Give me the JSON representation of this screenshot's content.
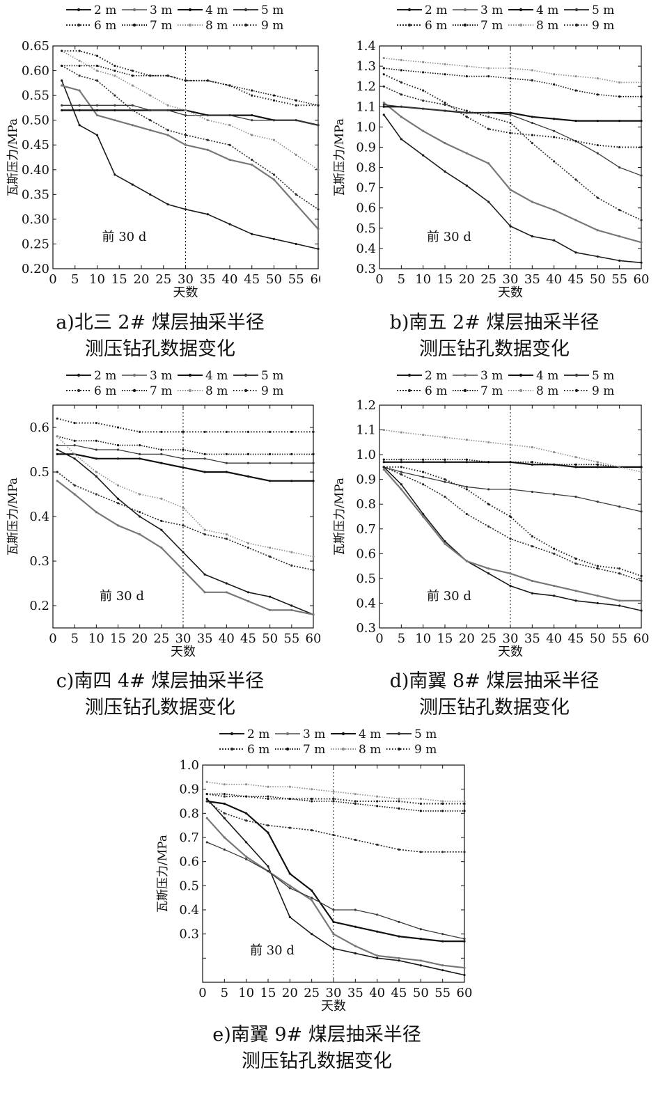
{
  "legend_labels": [
    "2 m",
    "3 m",
    "4 m",
    "5 m",
    "6 m",
    "7 m",
    "8 m",
    "9 m"
  ],
  "chart_data": [
    {
      "id": "a",
      "type": "line",
      "title": "",
      "caption_line1": "a)北三 2# 煤层抽采半径",
      "caption_line2": "测压钻孔数据变化",
      "xlabel": "天数",
      "ylabel": "瓦斯压力/MPa",
      "annotation": "前 30 d",
      "marker_x": 30,
      "xlim": [
        0,
        60
      ],
      "ylim": [
        0.2,
        0.65
      ],
      "xticks": [
        "0",
        "5",
        "10",
        "15",
        "20",
        "25",
        "30",
        "35",
        "40",
        "45",
        "50",
        "55",
        "60"
      ],
      "yticks": [
        "0.20",
        "0.25",
        "0.30",
        "0.35",
        "0.40",
        "0.45",
        "0.50",
        "0.55",
        "0.60",
        "0.65"
      ],
      "x": [
        2,
        6,
        10,
        14,
        18,
        22,
        26,
        30,
        35,
        40,
        45,
        50,
        55,
        60
      ],
      "series": [
        {
          "name": "2 m",
          "values": [
            0.58,
            0.49,
            0.47,
            0.39,
            0.37,
            0.35,
            0.33,
            0.32,
            0.31,
            0.29,
            0.27,
            0.26,
            0.25,
            0.24
          ]
        },
        {
          "name": "3 m",
          "values": [
            0.57,
            0.56,
            0.51,
            0.5,
            0.49,
            0.48,
            0.47,
            0.45,
            0.44,
            0.42,
            0.41,
            0.38,
            0.33,
            0.28
          ]
        },
        {
          "name": "4 m",
          "values": [
            0.52,
            0.52,
            0.52,
            0.52,
            0.52,
            0.52,
            0.52,
            0.52,
            0.51,
            0.51,
            0.51,
            0.5,
            0.5,
            0.49
          ]
        },
        {
          "name": "5 m",
          "values": [
            0.53,
            0.53,
            0.53,
            0.53,
            0.53,
            0.52,
            0.52,
            0.51,
            0.51,
            0.51,
            0.5,
            0.5,
            0.5,
            0.49
          ]
        },
        {
          "name": "6 m",
          "values": [
            0.61,
            0.59,
            0.58,
            0.55,
            0.52,
            0.5,
            0.48,
            0.47,
            0.46,
            0.45,
            0.42,
            0.39,
            0.35,
            0.32
          ]
        },
        {
          "name": "7 m",
          "values": [
            0.61,
            0.61,
            0.61,
            0.6,
            0.59,
            0.59,
            0.59,
            0.58,
            0.58,
            0.57,
            0.56,
            0.55,
            0.54,
            0.53
          ]
        },
        {
          "name": "8 m",
          "values": [
            0.64,
            0.62,
            0.6,
            0.59,
            0.57,
            0.55,
            0.53,
            0.52,
            0.5,
            0.49,
            0.47,
            0.46,
            0.43,
            0.4
          ]
        },
        {
          "name": "9 m",
          "values": [
            0.64,
            0.64,
            0.63,
            0.61,
            0.6,
            0.59,
            0.59,
            0.58,
            0.58,
            0.57,
            0.55,
            0.54,
            0.53,
            0.53
          ]
        }
      ]
    },
    {
      "id": "b",
      "type": "line",
      "title": "",
      "caption_line1": "b)南五 2# 煤层抽采半径",
      "caption_line2": "测压钻孔数据变化",
      "xlabel": "天数",
      "ylabel": "瓦斯压力/MPa",
      "annotation": "前 30 d",
      "marker_x": 30,
      "xlim": [
        0,
        60
      ],
      "ylim": [
        0.3,
        1.4
      ],
      "xticks": [
        "0",
        "5",
        "10",
        "15",
        "20",
        "25",
        "30",
        "35",
        "40",
        "45",
        "50",
        "55",
        "60"
      ],
      "yticks": [
        "0.3",
        "0.4",
        "0.5",
        "0.6",
        "0.7",
        "0.8",
        "0.9",
        "1.0",
        "1.1",
        "1.2",
        "1.3",
        "1.4"
      ],
      "x": [
        1,
        5,
        10,
        15,
        20,
        25,
        30,
        35,
        40,
        45,
        50,
        55,
        60
      ],
      "series": [
        {
          "name": "2 m",
          "values": [
            1.06,
            0.94,
            0.86,
            0.78,
            0.71,
            0.63,
            0.51,
            0.46,
            0.44,
            0.38,
            0.36,
            0.34,
            0.33
          ]
        },
        {
          "name": "3 m",
          "values": [
            1.12,
            1.05,
            0.98,
            0.92,
            0.87,
            0.82,
            0.69,
            0.63,
            0.59,
            0.54,
            0.49,
            0.46,
            0.43
          ]
        },
        {
          "name": "4 m",
          "values": [
            1.1,
            1.1,
            1.09,
            1.08,
            1.07,
            1.07,
            1.07,
            1.05,
            1.04,
            1.03,
            1.03,
            1.03,
            1.03
          ]
        },
        {
          "name": "5 m",
          "values": [
            1.11,
            1.1,
            1.09,
            1.08,
            1.07,
            1.07,
            1.06,
            1.02,
            0.98,
            0.93,
            0.87,
            0.8,
            0.76
          ]
        },
        {
          "name": "6 m",
          "values": [
            1.2,
            1.16,
            1.13,
            1.11,
            1.08,
            1.05,
            1.02,
            0.92,
            0.83,
            0.74,
            0.65,
            0.59,
            0.54
          ]
        },
        {
          "name": "7 m",
          "values": [
            1.29,
            1.28,
            1.27,
            1.26,
            1.25,
            1.25,
            1.24,
            1.23,
            1.21,
            1.18,
            1.16,
            1.15,
            1.15
          ]
        },
        {
          "name": "8 m",
          "values": [
            1.34,
            1.33,
            1.32,
            1.31,
            1.3,
            1.29,
            1.29,
            1.28,
            1.26,
            1.25,
            1.24,
            1.22,
            1.22
          ]
        },
        {
          "name": "9 m",
          "values": [
            1.26,
            1.22,
            1.18,
            1.12,
            1.05,
            0.99,
            0.97,
            0.96,
            0.95,
            0.93,
            0.91,
            0.9,
            0.9
          ]
        }
      ]
    },
    {
      "id": "c",
      "type": "line",
      "title": "",
      "caption_line1": "c)南四 4# 煤层抽采半径",
      "caption_line2": "测压钻孔数据变化",
      "xlabel": "天数",
      "ylabel": "瓦斯压力/MPa",
      "annotation": "前 30 d",
      "marker_x": 30,
      "xlim": [
        0,
        60
      ],
      "ylim": [
        0.15,
        0.65
      ],
      "xticks": [
        "0",
        "5",
        "10",
        "15",
        "20",
        "25",
        "30",
        "35",
        "40",
        "45",
        "50",
        "55",
        "60"
      ],
      "yticks": [
        "0.2",
        "0.3",
        "0.4",
        "0.5",
        "0.6"
      ],
      "x": [
        1,
        5,
        10,
        15,
        20,
        25,
        30,
        35,
        40,
        45,
        50,
        55,
        60
      ],
      "series": [
        {
          "name": "2 m",
          "values": [
            0.55,
            0.53,
            0.49,
            0.44,
            0.4,
            0.37,
            0.32,
            0.27,
            0.25,
            0.23,
            0.22,
            0.2,
            0.18
          ]
        },
        {
          "name": "3 m",
          "values": [
            0.48,
            0.45,
            0.41,
            0.38,
            0.36,
            0.33,
            0.28,
            0.23,
            0.23,
            0.21,
            0.19,
            0.19,
            0.18
          ]
        },
        {
          "name": "4 m",
          "values": [
            0.54,
            0.54,
            0.53,
            0.53,
            0.53,
            0.52,
            0.51,
            0.5,
            0.5,
            0.49,
            0.48,
            0.48,
            0.48
          ]
        },
        {
          "name": "5 m",
          "values": [
            0.56,
            0.56,
            0.55,
            0.55,
            0.54,
            0.54,
            0.53,
            0.53,
            0.52,
            0.52,
            0.52,
            0.52,
            0.52
          ]
        },
        {
          "name": "6 m",
          "values": [
            0.5,
            0.47,
            0.45,
            0.43,
            0.41,
            0.39,
            0.38,
            0.36,
            0.35,
            0.33,
            0.31,
            0.29,
            0.28
          ]
        },
        {
          "name": "7 m",
          "values": [
            0.58,
            0.57,
            0.57,
            0.56,
            0.56,
            0.55,
            0.55,
            0.54,
            0.54,
            0.54,
            0.54,
            0.54,
            0.54
          ]
        },
        {
          "name": "8 m",
          "values": [
            0.58,
            0.54,
            0.5,
            0.47,
            0.45,
            0.44,
            0.42,
            0.37,
            0.36,
            0.34,
            0.33,
            0.32,
            0.31
          ]
        },
        {
          "name": "9 m",
          "values": [
            0.62,
            0.61,
            0.61,
            0.6,
            0.59,
            0.59,
            0.59,
            0.59,
            0.59,
            0.59,
            0.59,
            0.59,
            0.59
          ]
        }
      ]
    },
    {
      "id": "d",
      "type": "line",
      "title": "",
      "caption_line1": "d)南翼 8# 煤层抽采半径",
      "caption_line2": "测压钻孔数据变化",
      "xlabel": "天数",
      "ylabel": "瓦斯压力/MPa",
      "annotation": "前 30 d",
      "marker_x": 30,
      "xlim": [
        0,
        60
      ],
      "ylim": [
        0.3,
        1.2
      ],
      "xticks": [
        "0",
        "5",
        "10",
        "15",
        "20",
        "25",
        "30",
        "35",
        "40",
        "45",
        "50",
        "55",
        "60"
      ],
      "yticks": [
        "0.3",
        "0.4",
        "0.5",
        "0.6",
        "0.7",
        "0.8",
        "0.9",
        "1.0",
        "1.1",
        "1.2"
      ],
      "x": [
        1,
        5,
        10,
        15,
        20,
        25,
        30,
        35,
        40,
        45,
        50,
        55,
        60
      ],
      "series": [
        {
          "name": "2 m",
          "values": [
            0.95,
            0.88,
            0.76,
            0.65,
            0.57,
            0.52,
            0.47,
            0.44,
            0.43,
            0.41,
            0.4,
            0.39,
            0.37
          ]
        },
        {
          "name": "3 m",
          "values": [
            0.94,
            0.86,
            0.75,
            0.64,
            0.57,
            0.54,
            0.52,
            0.49,
            0.47,
            0.45,
            0.43,
            0.41,
            0.41
          ]
        },
        {
          "name": "4 m",
          "values": [
            0.97,
            0.97,
            0.97,
            0.97,
            0.97,
            0.97,
            0.97,
            0.96,
            0.96,
            0.95,
            0.95,
            0.95,
            0.95
          ]
        },
        {
          "name": "5 m",
          "values": [
            0.95,
            0.93,
            0.91,
            0.89,
            0.87,
            0.86,
            0.86,
            0.85,
            0.84,
            0.83,
            0.81,
            0.79,
            0.77
          ]
        },
        {
          "name": "6 m",
          "values": [
            0.95,
            0.92,
            0.88,
            0.83,
            0.76,
            0.71,
            0.66,
            0.63,
            0.6,
            0.56,
            0.54,
            0.52,
            0.49
          ]
        },
        {
          "name": "7 m",
          "values": [
            0.98,
            0.98,
            0.98,
            0.98,
            0.98,
            0.97,
            0.97,
            0.97,
            0.96,
            0.96,
            0.96,
            0.95,
            0.95
          ]
        },
        {
          "name": "8 m",
          "values": [
            1.1,
            1.09,
            1.08,
            1.07,
            1.06,
            1.05,
            1.04,
            1.03,
            1.01,
            0.99,
            0.97,
            0.95,
            0.93
          ]
        },
        {
          "name": "9 m",
          "values": [
            0.95,
            0.95,
            0.93,
            0.9,
            0.86,
            0.8,
            0.75,
            0.67,
            0.62,
            0.58,
            0.55,
            0.54,
            0.51
          ]
        }
      ]
    },
    {
      "id": "e",
      "type": "line",
      "title": "",
      "caption_line1": "e)南翼 9# 煤层抽采半径",
      "caption_line2": "测压钻孔数据变化",
      "xlabel": "天数",
      "ylabel": "瓦斯压力/MPa",
      "annotation": "前 30 d",
      "marker_x": 30,
      "xlim": [
        0,
        60
      ],
      "ylim": [
        0.1,
        1.0
      ],
      "xticks": [
        "0",
        "5",
        "10",
        "15",
        "20",
        "25",
        "30",
        "35",
        "40",
        "45",
        "50",
        "55",
        "60"
      ],
      "yticks": [
        "",
        "0.3",
        "0.4",
        "0.5",
        "0.6",
        "0.7",
        "0.8",
        "0.9",
        "1.0"
      ],
      "ytick_values": [
        0.2,
        0.3,
        0.4,
        0.5,
        0.6,
        0.7,
        0.8,
        0.9,
        1.0
      ],
      "x": [
        1,
        5,
        10,
        15,
        20,
        25,
        30,
        35,
        40,
        45,
        50,
        55,
        60
      ],
      "series": [
        {
          "name": "2 m",
          "values": [
            0.86,
            0.78,
            0.68,
            0.58,
            0.37,
            0.3,
            0.24,
            0.22,
            0.2,
            0.19,
            0.17,
            0.15,
            0.13
          ]
        },
        {
          "name": "3 m",
          "values": [
            0.78,
            0.7,
            0.62,
            0.56,
            0.5,
            0.44,
            0.3,
            0.25,
            0.21,
            0.2,
            0.19,
            0.17,
            0.16
          ]
        },
        {
          "name": "4 m",
          "values": [
            0.85,
            0.84,
            0.8,
            0.72,
            0.55,
            0.48,
            0.35,
            0.33,
            0.31,
            0.29,
            0.28,
            0.27,
            0.27
          ]
        },
        {
          "name": "5 m",
          "values": [
            0.68,
            0.65,
            0.61,
            0.56,
            0.49,
            0.45,
            0.4,
            0.4,
            0.38,
            0.35,
            0.32,
            0.3,
            0.28
          ]
        },
        {
          "name": "6 m",
          "values": [
            0.85,
            0.8,
            0.77,
            0.75,
            0.74,
            0.73,
            0.71,
            0.69,
            0.67,
            0.65,
            0.64,
            0.64,
            0.64
          ]
        },
        {
          "name": "7 m",
          "values": [
            0.88,
            0.88,
            0.87,
            0.87,
            0.86,
            0.85,
            0.85,
            0.84,
            0.83,
            0.82,
            0.81,
            0.81,
            0.81
          ]
        },
        {
          "name": "8 m",
          "values": [
            0.93,
            0.92,
            0.92,
            0.91,
            0.91,
            0.9,
            0.89,
            0.88,
            0.87,
            0.86,
            0.86,
            0.85,
            0.85
          ]
        },
        {
          "name": "9 m",
          "values": [
            0.88,
            0.87,
            0.87,
            0.86,
            0.86,
            0.86,
            0.86,
            0.85,
            0.85,
            0.85,
            0.84,
            0.84,
            0.84
          ]
        }
      ]
    }
  ]
}
